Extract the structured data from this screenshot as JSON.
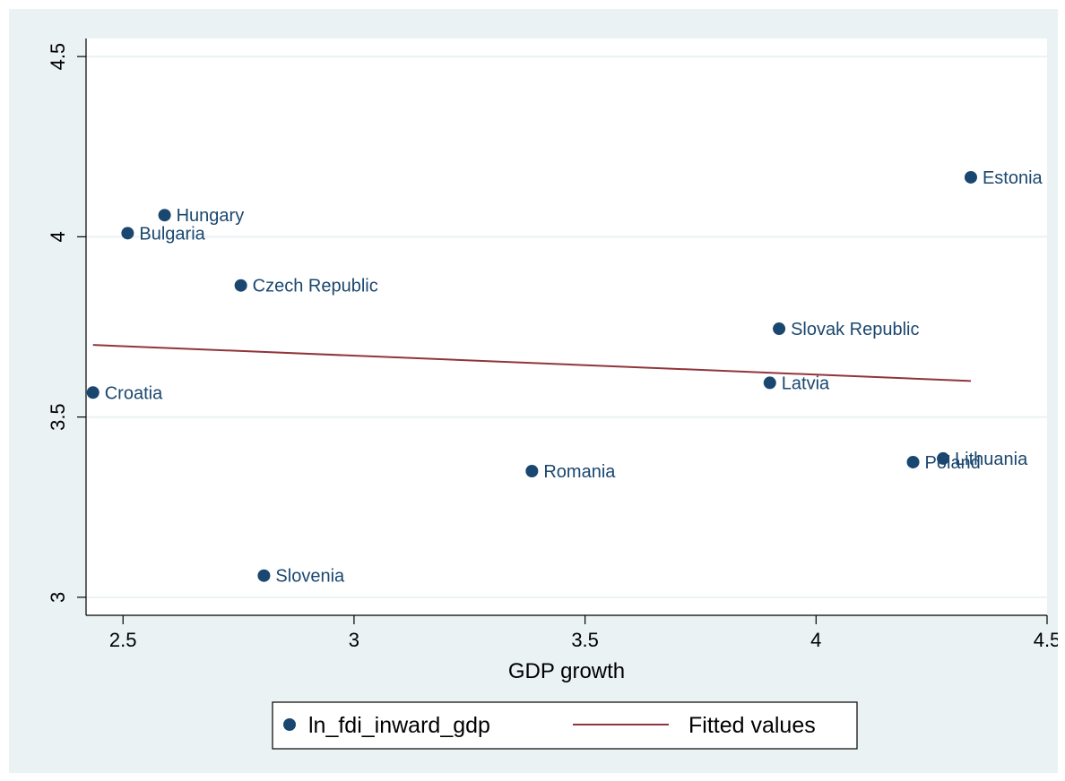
{
  "chart_data": {
    "type": "scatter",
    "xlabel": "GDP growth",
    "ylabel": "",
    "xlim": [
      2.42,
      4.5
    ],
    "ylim": [
      2.95,
      4.55
    ],
    "xticks": [
      2.5,
      3,
      3.5,
      4,
      4.5
    ],
    "yticks": [
      3,
      3.5,
      4,
      4.5
    ],
    "xtick_labels": [
      "2.5",
      "3",
      "3.5",
      "4",
      "4.5"
    ],
    "ytick_labels": [
      "3",
      "3.5",
      "4",
      "4.5"
    ],
    "grid": "horizontal",
    "legend_position": "bottom",
    "series": [
      {
        "name": "ln_fdi_inward_gdp",
        "kind": "scatter",
        "color": "#1a476f",
        "points": [
          {
            "label": "Estonia",
            "x": 4.335,
            "y": 4.165
          },
          {
            "label": "Hungary",
            "x": 2.59,
            "y": 4.06
          },
          {
            "label": "Bulgaria",
            "x": 2.51,
            "y": 4.01
          },
          {
            "label": "Czech Republic",
            "x": 2.755,
            "y": 3.865
          },
          {
            "label": "Slovak Republic",
            "x": 3.92,
            "y": 3.745
          },
          {
            "label": "Latvia",
            "x": 3.9,
            "y": 3.595
          },
          {
            "label": "Croatia",
            "x": 2.435,
            "y": 3.568
          },
          {
            "label": "Lithuania",
            "x": 4.275,
            "y": 3.385
          },
          {
            "label": "Poland",
            "x": 4.21,
            "y": 3.375
          },
          {
            "label": "Romania",
            "x": 3.385,
            "y": 3.35
          },
          {
            "label": "Slovenia",
            "x": 2.805,
            "y": 3.06
          }
        ]
      },
      {
        "name": "Fitted values",
        "kind": "line",
        "color": "#90353b",
        "points": [
          {
            "x": 2.435,
            "y": 3.7
          },
          {
            "x": 4.335,
            "y": 3.6
          }
        ]
      }
    ]
  }
}
